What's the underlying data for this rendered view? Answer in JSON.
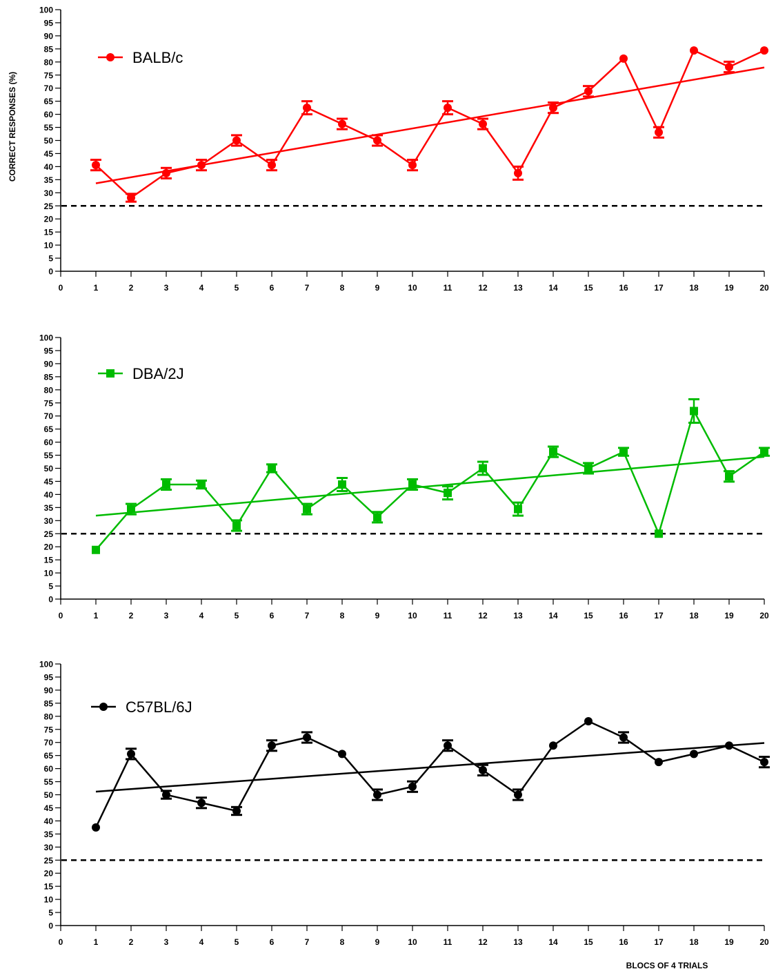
{
  "chart_data": [
    {
      "type": "line",
      "panel": "top",
      "title": "",
      "ylabel": "CORRECT RESPONSES (%)",
      "xlabel": "",
      "xlim": [
        0,
        20
      ],
      "ylim": [
        0,
        100
      ],
      "x_ticks": [
        0,
        1,
        2,
        3,
        4,
        5,
        6,
        7,
        8,
        9,
        10,
        11,
        12,
        13,
        14,
        15,
        16,
        17,
        18,
        19,
        20
      ],
      "y_ticks": [
        0,
        5,
        10,
        15,
        20,
        25,
        30,
        35,
        40,
        45,
        50,
        55,
        60,
        65,
        70,
        75,
        80,
        85,
        90,
        95,
        100
      ],
      "legend": "top-left",
      "chance_level": 25,
      "series": [
        {
          "name": "BALB/c",
          "color": "#ff0000",
          "marker": "circle",
          "x": [
            1,
            2,
            3,
            4,
            5,
            6,
            7,
            8,
            9,
            10,
            11,
            12,
            13,
            14,
            15,
            16,
            17,
            18,
            19,
            20
          ],
          "values": [
            40.6,
            28.1,
            37.5,
            40.6,
            50,
            40.6,
            62.5,
            56.3,
            50,
            40.6,
            62.5,
            56.3,
            37.5,
            62.5,
            68.8,
            81.3,
            53.1,
            84.4,
            78.1,
            84.4
          ],
          "error": [
            2,
            1.5,
            2,
            2,
            2,
            2,
            2.5,
            2,
            2,
            2,
            2.5,
            2,
            2.5,
            2,
            2,
            0,
            2,
            0,
            2,
            0
          ],
          "trend": [
            33.6,
            77.9
          ]
        }
      ]
    },
    {
      "type": "line",
      "panel": "middle",
      "title": "",
      "ylabel": "",
      "xlabel": "",
      "xlim": [
        0,
        20
      ],
      "ylim": [
        0,
        100
      ],
      "x_ticks": [
        0,
        1,
        2,
        3,
        4,
        5,
        6,
        7,
        8,
        9,
        10,
        11,
        12,
        13,
        14,
        15,
        16,
        17,
        18,
        19,
        20
      ],
      "y_ticks": [
        0,
        5,
        10,
        15,
        20,
        25,
        30,
        35,
        40,
        45,
        50,
        55,
        60,
        65,
        70,
        75,
        80,
        85,
        90,
        95,
        100
      ],
      "legend": "top-left",
      "chance_level": 25,
      "series": [
        {
          "name": "DBA/2J",
          "color": "#00bb00",
          "marker": "square",
          "x": [
            1,
            2,
            3,
            4,
            5,
            6,
            7,
            8,
            9,
            10,
            11,
            12,
            13,
            14,
            15,
            16,
            17,
            18,
            19,
            20
          ],
          "values": [
            18.8,
            34.4,
            43.8,
            43.8,
            28.1,
            50,
            34.4,
            43.8,
            31.3,
            43.8,
            40.6,
            50,
            34.4,
            56.3,
            50,
            56.3,
            25,
            71.9,
            46.9,
            56.3
          ],
          "error": [
            0,
            2,
            2,
            1.5,
            2,
            1.5,
            2,
            2.5,
            2,
            2,
            2.5,
            2.5,
            2.5,
            2,
            2,
            1.5,
            0,
            4.5,
            2,
            1.5
          ],
          "trend": [
            31.9,
            54.4
          ]
        }
      ]
    },
    {
      "type": "line",
      "panel": "bottom",
      "title": "",
      "ylabel": "",
      "xlabel": "BLOCS OF 4 TRIALS",
      "xlim": [
        0,
        20
      ],
      "ylim": [
        0,
        100
      ],
      "x_ticks": [
        0,
        1,
        2,
        3,
        4,
        5,
        6,
        7,
        8,
        9,
        10,
        11,
        12,
        13,
        14,
        15,
        16,
        17,
        18,
        19,
        20
      ],
      "y_ticks": [
        0,
        5,
        10,
        15,
        20,
        25,
        30,
        35,
        40,
        45,
        50,
        55,
        60,
        65,
        70,
        75,
        80,
        85,
        90,
        95,
        100
      ],
      "legend": "top-left",
      "chance_level": 25,
      "series": [
        {
          "name": "C57BL/6J",
          "color": "#000000",
          "marker": "circle",
          "x": [
            1,
            2,
            3,
            4,
            5,
            6,
            7,
            8,
            9,
            10,
            11,
            12,
            13,
            14,
            15,
            16,
            17,
            18,
            19,
            20
          ],
          "values": [
            37.5,
            65.6,
            50,
            46.9,
            43.8,
            68.8,
            71.9,
            65.6,
            50,
            53.1,
            68.8,
            59.4,
            50,
            68.8,
            78.1,
            71.9,
            62.5,
            65.6,
            68.8,
            62.5
          ],
          "error": [
            0,
            2,
            1.5,
            2,
            1.5,
            2,
            2,
            0,
            2,
            2,
            2,
            2,
            2,
            0,
            0,
            2,
            0,
            0,
            0,
            2
          ],
          "trend": [
            51.2,
            69.8
          ]
        }
      ]
    }
  ]
}
